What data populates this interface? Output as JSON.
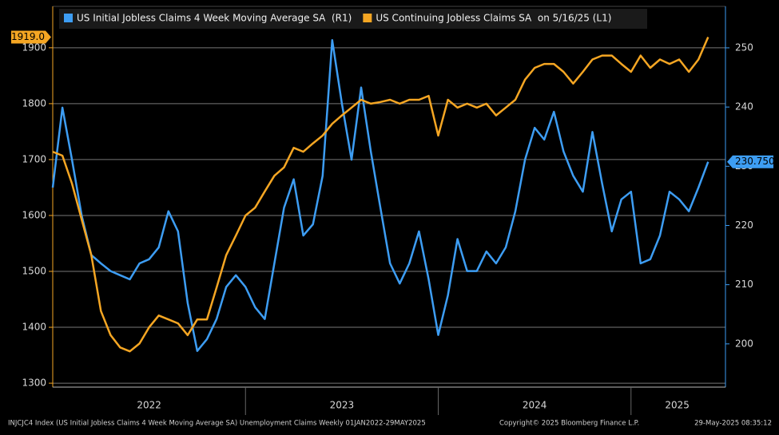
{
  "chart_data": {
    "type": "line",
    "legend": [],
    "footer_left": "INJCJC4 Index (US Initial Jobless Claims 4 Week Moving Average SA) Unemployment Claims  Weekly 01JAN2022-29MAY2025",
    "footer_center": "Copyright© 2025 Bloomberg Finance L.P.",
    "footer_right": "29-May-2025 08:35:12",
    "x": [
      2022.0,
      2022.05,
      2022.1,
      2022.15,
      2022.2,
      2022.25,
      2022.3,
      2022.35,
      2022.4,
      2022.45,
      2022.5,
      2022.55,
      2022.6,
      2022.65,
      2022.7,
      2022.75,
      2022.8,
      2022.85,
      2022.9,
      2022.95,
      2023.0,
      2023.05,
      2023.1,
      2023.15,
      2023.2,
      2023.25,
      2023.3,
      2023.35,
      2023.4,
      2023.45,
      2023.5,
      2023.55,
      2023.6,
      2023.65,
      2023.7,
      2023.75,
      2023.8,
      2023.85,
      2023.9,
      2023.95,
      2024.0,
      2024.05,
      2024.1,
      2024.15,
      2024.2,
      2024.25,
      2024.3,
      2024.35,
      2024.4,
      2024.45,
      2024.5,
      2024.55,
      2024.6,
      2024.65,
      2024.7,
      2024.75,
      2024.8,
      2024.85,
      2024.9,
      2024.95,
      2025.0,
      2025.05,
      2025.1,
      2025.15,
      2025.2,
      2025.25,
      2025.3,
      2025.35,
      2025.4
    ],
    "xlim": [
      2022.0,
      2025.49
    ],
    "xticks": [
      {
        "value": 2022.5,
        "label": "2022"
      },
      {
        "value": 2023.5,
        "label": "2023"
      },
      {
        "value": 2024.5,
        "label": "2024"
      },
      {
        "value": 2025.24,
        "label": "2025"
      }
    ],
    "xgrid": [
      2023,
      2024,
      2025
    ],
    "ylim": [
      1293,
      1974
    ],
    "yticks": [
      1300,
      1400,
      1500,
      1600,
      1700,
      1800,
      1900
    ],
    "y2lim": [
      192.7,
      257
    ],
    "y2ticks": [
      200,
      210,
      220,
      230,
      240,
      250
    ],
    "grid": true,
    "series": [
      {
        "name": "US Initial Jobless Claims 4 Week Moving Average SA  (R1)",
        "color": "#3d9df3",
        "axis": "y2",
        "value_label": "230.750",
        "values": [
          226.4,
          239.9,
          231.1,
          221.7,
          215.0,
          213.6,
          212.3,
          211.6,
          210.9,
          213.6,
          214.3,
          216.3,
          222.4,
          219.0,
          206.9,
          198.8,
          200.8,
          204.2,
          209.6,
          211.6,
          209.6,
          206.2,
          204.2,
          213.6,
          223.0,
          227.8,
          218.3,
          220.2,
          228.4,
          251.3,
          240.6,
          231.1,
          243.3,
          232.5,
          223.0,
          213.6,
          210.2,
          213.6,
          219.0,
          210.9,
          201.5,
          208.2,
          217.7,
          212.3,
          212.3,
          215.6,
          213.6,
          216.3,
          222.4,
          231.1,
          236.5,
          234.5,
          239.2,
          232.5,
          228.4,
          225.7,
          235.8,
          227.1,
          219.0,
          224.4,
          225.7,
          213.6,
          214.3,
          218.3,
          225.7,
          224.4,
          222.4,
          226.4,
          230.75
        ]
      },
      {
        "name": "US Continuing Jobless Claims SA  on 5/16/25 (L1)",
        "color": "#f5a623",
        "axis": "y",
        "value_label": "1919.0",
        "values": [
          1714,
          1707,
          1657,
          1593,
          1529,
          1429,
          1386,
          1364,
          1357,
          1371,
          1400,
          1421,
          1414,
          1407,
          1386,
          1414,
          1414,
          1471,
          1529,
          1564,
          1600,
          1614,
          1643,
          1671,
          1686,
          1721,
          1714,
          1729,
          1743,
          1764,
          1779,
          1793,
          1807,
          1800,
          1803,
          1807,
          1800,
          1807,
          1807,
          1814,
          1743,
          1807,
          1793,
          1800,
          1793,
          1800,
          1779,
          1793,
          1807,
          1843,
          1864,
          1871,
          1871,
          1857,
          1836,
          1857,
          1879,
          1886,
          1886,
          1871,
          1857,
          1886,
          1864,
          1879,
          1871,
          1879,
          1857,
          1879,
          1919
        ]
      }
    ]
  }
}
